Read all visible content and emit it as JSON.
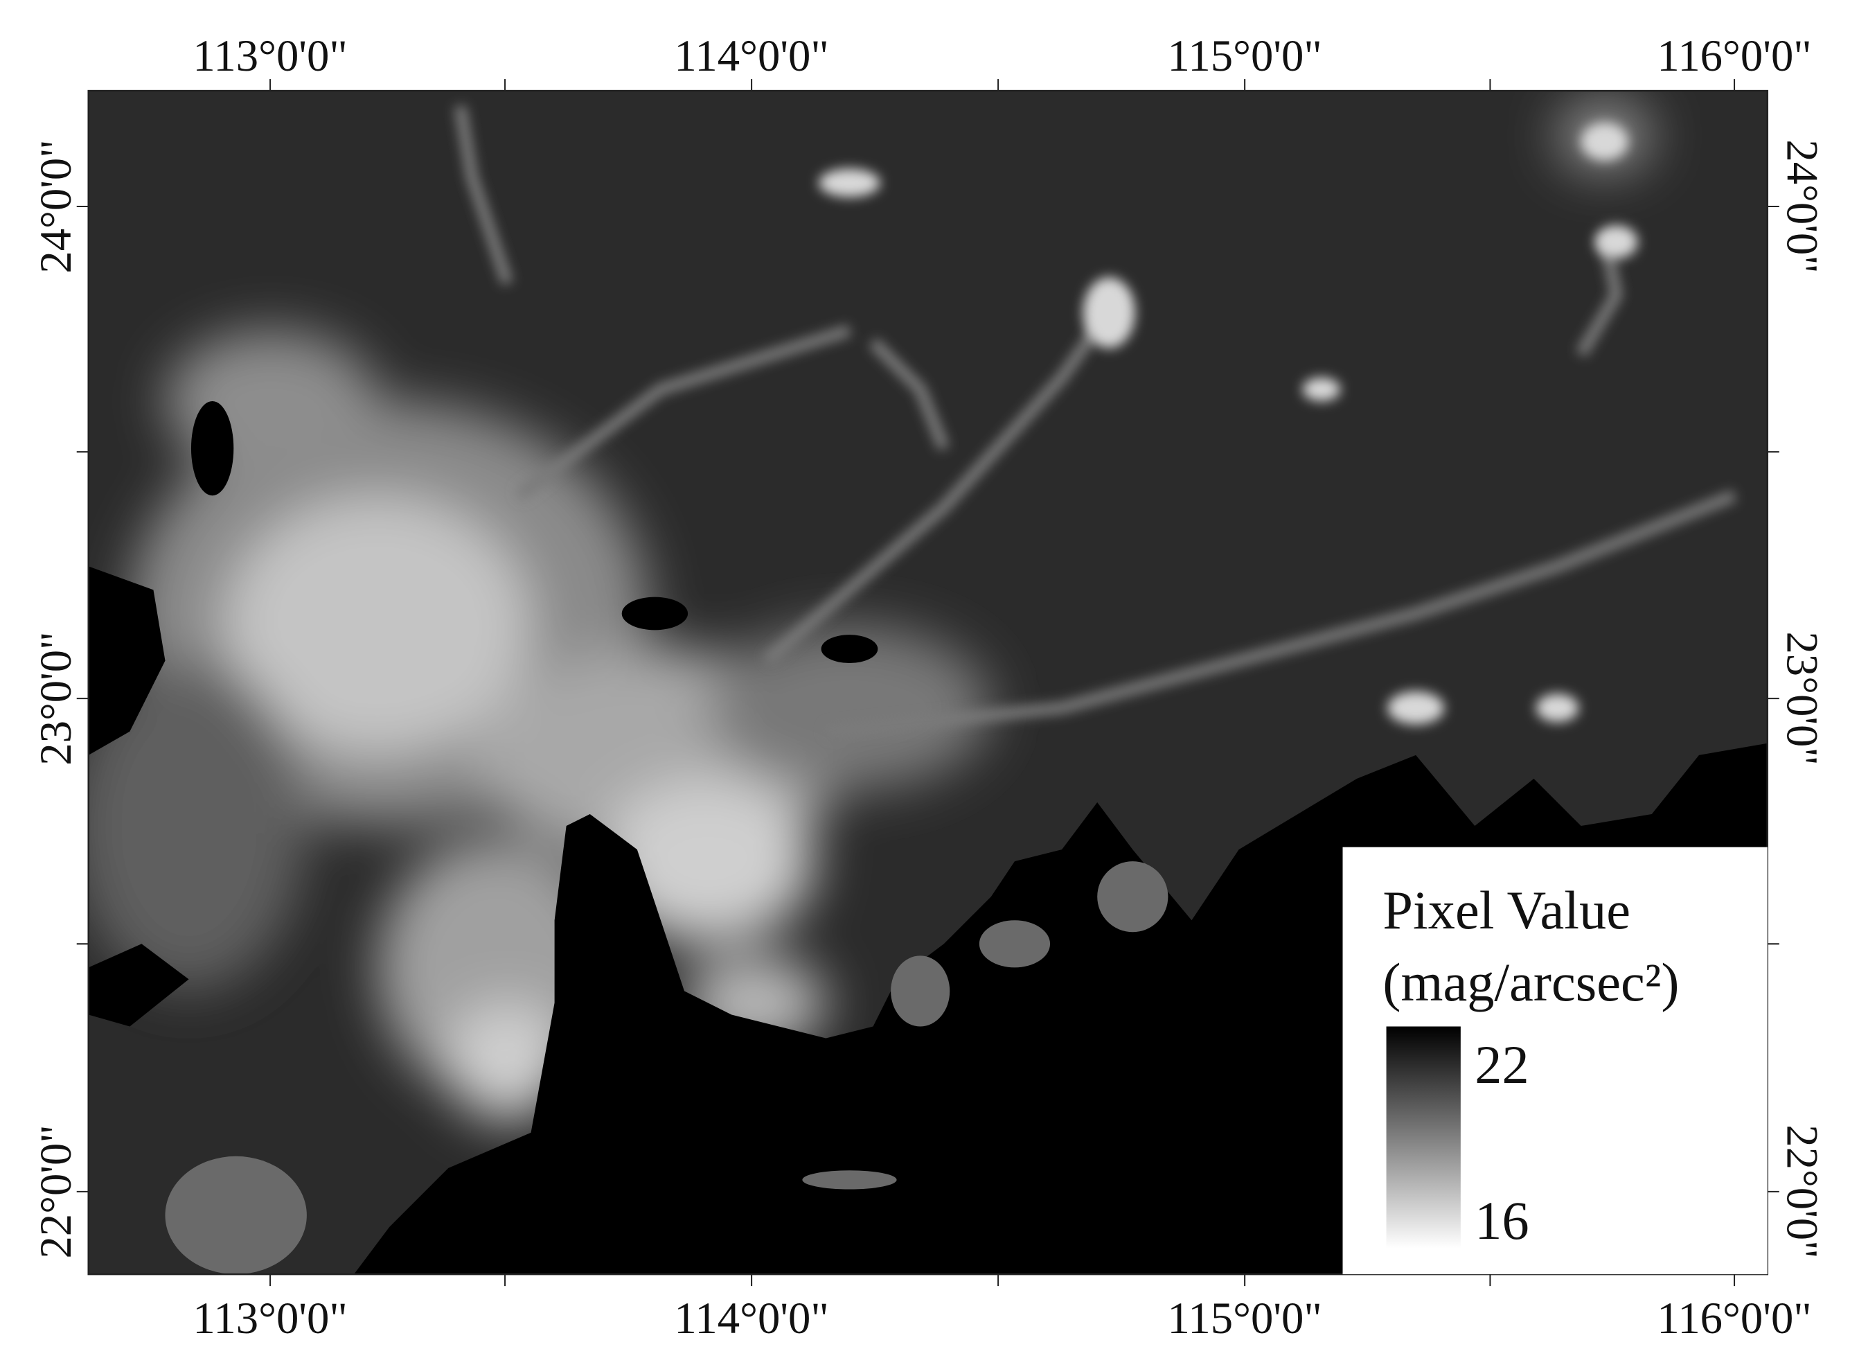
{
  "map": {
    "lon_labels": [
      "113°0'0\"",
      "114°0'0\"",
      "115°0'0\"",
      "116°0'0\""
    ],
    "lat_labels": [
      "24°0'0\"",
      "23°0'0\"",
      "22°0'0\""
    ],
    "legend": {
      "title": "Pixel Value",
      "unit": "(mag/arcsec²)",
      "max_label": "22",
      "min_label": "16"
    }
  }
}
